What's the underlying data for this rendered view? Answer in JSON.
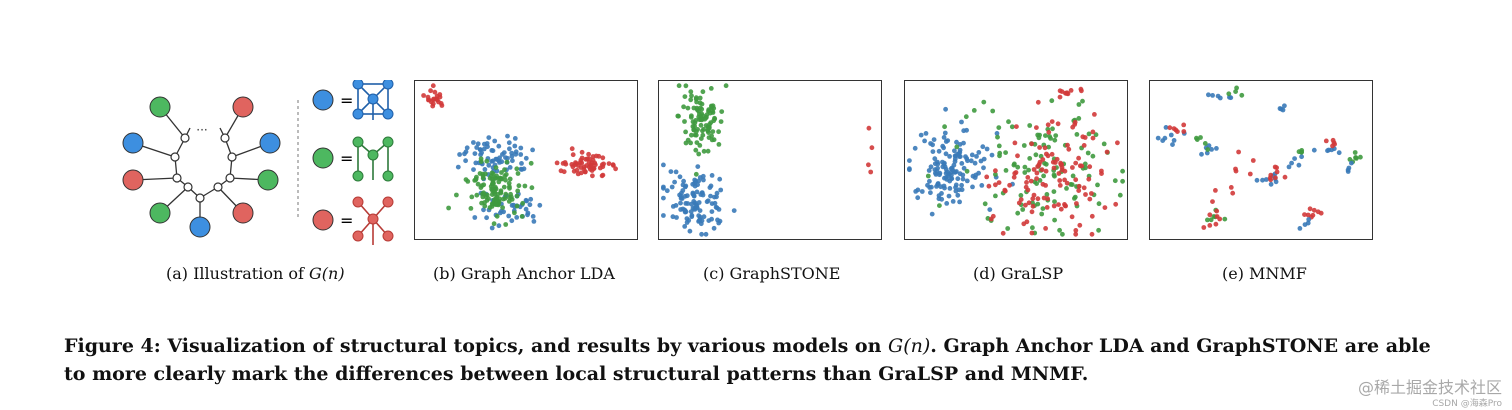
{
  "colors": {
    "blue": "#3a7ab8",
    "green": "#3f9a3f",
    "red": "#d23a3a",
    "node_blue": "#3d8fe0",
    "node_green": "#4db860",
    "node_red": "#e0645f"
  },
  "illustration": {
    "ellipsis": "···"
  },
  "subcaptions": {
    "a": {
      "prefix": "(a)  Illustration of ",
      "math": "G(n)"
    },
    "b": "(b)  Graph Anchor LDA",
    "c": "(c)  GraphSTONE",
    "d": "(d)  GraLSP",
    "e": "(e)  MNMF"
  },
  "caption": {
    "part1": "Figure 4: Visualization of structural topics, and results by various models on ",
    "math": "G(n)",
    "part2": ". Graph Anchor LDA and GraphSTONE are able to more clearly mark the differences between local structural patterns than GraLSP and MNMF."
  },
  "watermark": {
    "main": "@稀土掘金技术社区",
    "sub": "CSDN @海森Pro"
  },
  "chart_data": [
    {
      "type": "scatter",
      "id": "graph-anchor-lda",
      "title": "Graph Anchor LDA",
      "clusters": [
        {
          "color": "red",
          "cx": 0.09,
          "cy": 0.11,
          "sx": 0.025,
          "sy": 0.035,
          "n": 20
        },
        {
          "color": "blue",
          "cx": 0.36,
          "cy": 0.47,
          "sx": 0.08,
          "sy": 0.06,
          "n": 70
        },
        {
          "color": "blue",
          "cx": 0.43,
          "cy": 0.8,
          "sx": 0.07,
          "sy": 0.06,
          "n": 40
        },
        {
          "color": "green",
          "cx": 0.36,
          "cy": 0.7,
          "sx": 0.06,
          "sy": 0.09,
          "n": 120
        },
        {
          "color": "red",
          "cx": 0.78,
          "cy": 0.53,
          "sx": 0.07,
          "sy": 0.03,
          "n": 60
        }
      ]
    },
    {
      "type": "scatter",
      "id": "graphstone",
      "title": "GraphSTONE",
      "clusters": [
        {
          "color": "green",
          "cx": 0.19,
          "cy": 0.23,
          "sx": 0.05,
          "sy": 0.11,
          "n": 100
        },
        {
          "color": "blue",
          "cx": 0.17,
          "cy": 0.76,
          "sx": 0.07,
          "sy": 0.09,
          "n": 110
        },
        {
          "color": "red",
          "cx": 0.95,
          "cy": 0.5,
          "sx": 0.008,
          "sy": 0.05,
          "n": 4
        }
      ]
    },
    {
      "type": "scatter",
      "id": "gralsp",
      "title": "GraLSP",
      "clusters": [
        {
          "color": "blue",
          "cx": 0.2,
          "cy": 0.55,
          "sx": 0.09,
          "sy": 0.13,
          "n": 140
        },
        {
          "color": "green",
          "cx": 0.6,
          "cy": 0.55,
          "sx": 0.17,
          "sy": 0.22,
          "n": 120
        },
        {
          "color": "red",
          "cx": 0.66,
          "cy": 0.58,
          "sx": 0.13,
          "sy": 0.2,
          "n": 120
        },
        {
          "color": "red",
          "cx": 0.74,
          "cy": 0.08,
          "sx": 0.04,
          "sy": 0.02,
          "n": 10
        }
      ]
    },
    {
      "type": "scatter",
      "id": "mnmf",
      "title": "MNMF",
      "clusters": [
        {
          "color": "blue",
          "cx": 0.33,
          "cy": 0.1,
          "sx": 0.03,
          "sy": 0.01,
          "n": 6
        },
        {
          "color": "green",
          "cx": 0.38,
          "cy": 0.07,
          "sx": 0.02,
          "sy": 0.01,
          "n": 4
        },
        {
          "color": "blue",
          "cx": 0.58,
          "cy": 0.17,
          "sx": 0.015,
          "sy": 0.01,
          "n": 4
        },
        {
          "color": "blue",
          "cx": 0.09,
          "cy": 0.36,
          "sx": 0.03,
          "sy": 0.03,
          "n": 8
        },
        {
          "color": "red",
          "cx": 0.12,
          "cy": 0.3,
          "sx": 0.03,
          "sy": 0.02,
          "n": 6
        },
        {
          "color": "blue",
          "cx": 0.27,
          "cy": 0.44,
          "sx": 0.02,
          "sy": 0.02,
          "n": 6
        },
        {
          "color": "green",
          "cx": 0.24,
          "cy": 0.4,
          "sx": 0.02,
          "sy": 0.02,
          "n": 5
        },
        {
          "color": "blue",
          "cx": 0.54,
          "cy": 0.62,
          "sx": 0.03,
          "sy": 0.02,
          "n": 8
        },
        {
          "color": "red",
          "cx": 0.56,
          "cy": 0.6,
          "sx": 0.03,
          "sy": 0.03,
          "n": 8
        },
        {
          "color": "blue",
          "cx": 0.64,
          "cy": 0.5,
          "sx": 0.02,
          "sy": 0.02,
          "n": 5
        },
        {
          "color": "green",
          "cx": 0.68,
          "cy": 0.45,
          "sx": 0.015,
          "sy": 0.015,
          "n": 4
        },
        {
          "color": "blue",
          "cx": 0.8,
          "cy": 0.43,
          "sx": 0.02,
          "sy": 0.02,
          "n": 6
        },
        {
          "color": "red",
          "cx": 0.82,
          "cy": 0.38,
          "sx": 0.02,
          "sy": 0.02,
          "n": 5
        },
        {
          "color": "green",
          "cx": 0.92,
          "cy": 0.5,
          "sx": 0.03,
          "sy": 0.02,
          "n": 7
        },
        {
          "color": "blue",
          "cx": 0.9,
          "cy": 0.56,
          "sx": 0.02,
          "sy": 0.02,
          "n": 4
        },
        {
          "color": "green",
          "cx": 0.31,
          "cy": 0.88,
          "sx": 0.03,
          "sy": 0.02,
          "n": 6
        },
        {
          "color": "red",
          "cx": 0.29,
          "cy": 0.86,
          "sx": 0.03,
          "sy": 0.03,
          "n": 7
        },
        {
          "color": "red",
          "cx": 0.72,
          "cy": 0.83,
          "sx": 0.03,
          "sy": 0.02,
          "n": 8
        },
        {
          "color": "blue",
          "cx": 0.68,
          "cy": 0.9,
          "sx": 0.02,
          "sy": 0.02,
          "n": 4
        },
        {
          "color": "red",
          "cx": 0.42,
          "cy": 0.58,
          "sx": 0.04,
          "sy": 0.05,
          "n": 5
        },
        {
          "color": "red",
          "cx": 0.35,
          "cy": 0.7,
          "sx": 0.04,
          "sy": 0.04,
          "n": 4
        }
      ]
    }
  ]
}
